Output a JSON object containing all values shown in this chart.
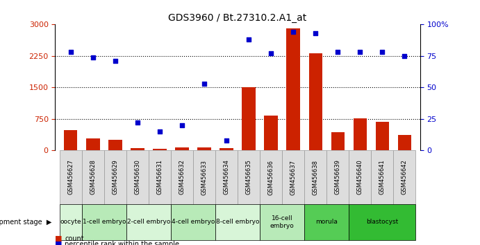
{
  "title": "GDS3960 / Bt.27310.2.A1_at",
  "samples": [
    "GSM456627",
    "GSM456628",
    "GSM456629",
    "GSM456630",
    "GSM456631",
    "GSM456632",
    "GSM456633",
    "GSM456634",
    "GSM456635",
    "GSM456636",
    "GSM456637",
    "GSM456638",
    "GSM456639",
    "GSM456640",
    "GSM456641",
    "GSM456642"
  ],
  "counts": [
    480,
    280,
    250,
    50,
    40,
    60,
    70,
    50,
    1510,
    830,
    2900,
    2310,
    430,
    760,
    680,
    360
  ],
  "percentiles": [
    78,
    74,
    71,
    22,
    15,
    20,
    53,
    8,
    88,
    77,
    94,
    93,
    78,
    78,
    78,
    75
  ],
  "stages": [
    {
      "label": "oocyte",
      "start": 0,
      "end": 1,
      "color": "#d8f5d8"
    },
    {
      "label": "1-cell embryo",
      "start": 1,
      "end": 3,
      "color": "#b8eab8"
    },
    {
      "label": "2-cell embryo",
      "start": 3,
      "end": 5,
      "color": "#d8f5d8"
    },
    {
      "label": "4-cell embryo",
      "start": 5,
      "end": 7,
      "color": "#b8eab8"
    },
    {
      "label": "8-cell embryo",
      "start": 7,
      "end": 9,
      "color": "#d8f5d8"
    },
    {
      "label": "16-cell\nembryo",
      "start": 9,
      "end": 11,
      "color": "#b8eab8"
    },
    {
      "label": "morula",
      "start": 11,
      "end": 13,
      "color": "#55cc55"
    },
    {
      "label": "blastocyst",
      "start": 13,
      "end": 16,
      "color": "#33bb33"
    }
  ],
  "ylim_left": [
    0,
    3000
  ],
  "ylim_right": [
    0,
    100
  ],
  "yticks_left": [
    0,
    750,
    1500,
    2250,
    3000
  ],
  "yticks_right": [
    0,
    25,
    50,
    75,
    100
  ],
  "bar_color": "#cc2200",
  "dot_color": "#0000cc",
  "background_color": "#ffffff",
  "tick_label_color_left": "#cc2200",
  "tick_label_color_right": "#0000cc",
  "xticklabel_bg": "#dddddd"
}
